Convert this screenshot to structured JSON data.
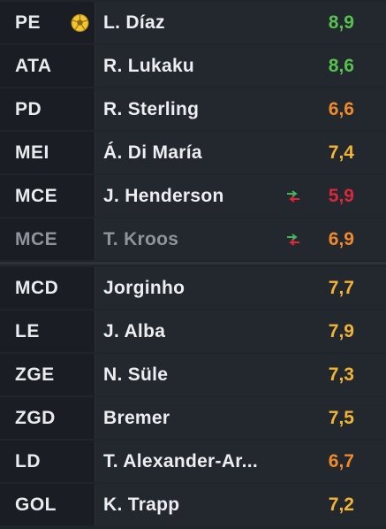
{
  "colors": {
    "green": "#56c14f",
    "orange": "#f08a2a",
    "yellow": "#f2b531",
    "red": "#d8283c",
    "sub_arrow_out": "#d8283c",
    "sub_arrow_in": "#3fb55c",
    "ball": "#f3c531"
  },
  "lineup": [
    {
      "pos": "PE",
      "name": "L. Díaz",
      "rating": "8,9",
      "rating_color": "#56c14f",
      "icon": "goal-ball-icon"
    },
    {
      "pos": "ATA",
      "name": "R. Lukaku",
      "rating": "8,6",
      "rating_color": "#56c14f"
    },
    {
      "pos": "PD",
      "name": "R. Sterling",
      "rating": "6,6",
      "rating_color": "#f08a2a"
    },
    {
      "pos": "MEI",
      "name": "Á. Di María",
      "rating": "7,4",
      "rating_color": "#f2b531"
    },
    {
      "pos": "MCE",
      "name": "J. Henderson",
      "rating": "5,9",
      "rating_color": "#d8283c",
      "icon": "substitution-icon"
    },
    {
      "pos": "MCE",
      "name": "T. Kroos",
      "rating": "6,9",
      "rating_color": "#f08a2a",
      "icon": "substitution-icon",
      "dimmed": true
    },
    {
      "pos": "MCD",
      "name": "Jorginho",
      "rating": "7,7",
      "rating_color": "#f2b531"
    },
    {
      "pos": "LE",
      "name": "J. Alba",
      "rating": "7,9",
      "rating_color": "#f2b531"
    },
    {
      "pos": "ZGE",
      "name": "N. Süle",
      "rating": "7,3",
      "rating_color": "#f2b531"
    },
    {
      "pos": "ZGD",
      "name": "Bremer",
      "rating": "7,5",
      "rating_color": "#f2b531"
    },
    {
      "pos": "LD",
      "name": "T. Alexander-Ar...",
      "rating": "6,7",
      "rating_color": "#f08a2a"
    },
    {
      "pos": "GOL",
      "name": "K. Trapp",
      "rating": "7,2",
      "rating_color": "#f2b531"
    }
  ]
}
